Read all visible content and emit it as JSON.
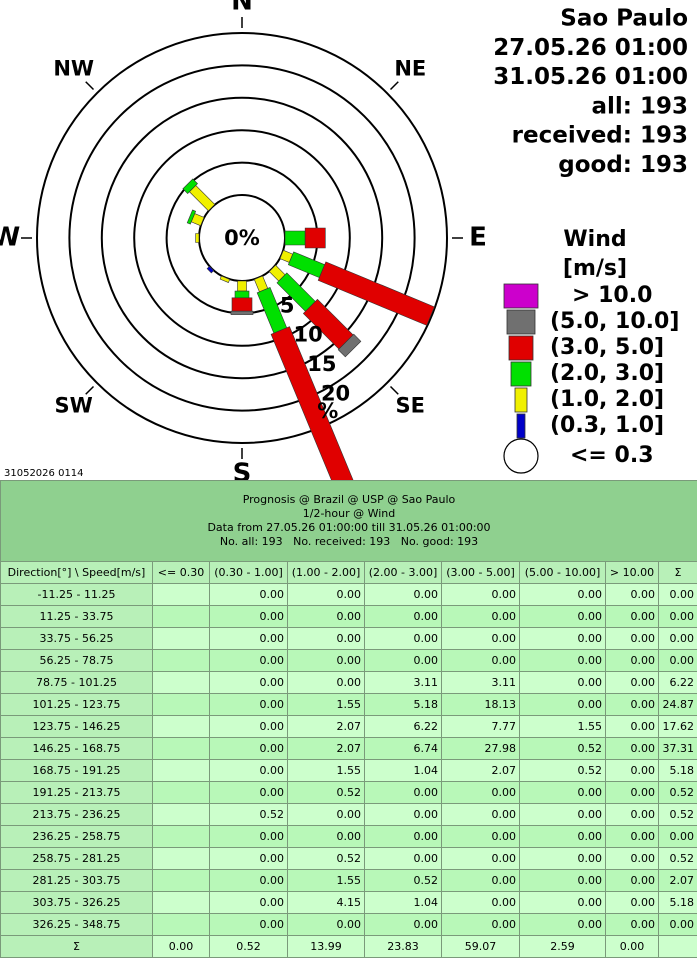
{
  "chart_data": {
    "type": "windrose",
    "info": [
      "Sao Paulo",
      "27.05.26 01:00",
      "31.05.26 01:00",
      "all: 193",
      "received: 193",
      "good: 193"
    ],
    "compass": [
      "N",
      "NE",
      "E",
      "SE",
      "S",
      "SW",
      "W",
      "NW"
    ],
    "center_label": "0%",
    "rlim": [
      0,
      25
    ],
    "rticks": [
      5,
      10,
      15,
      20
    ],
    "runit": "%",
    "legend": {
      "title": "Wind",
      "unit": "[m/s]",
      "items": [
        {
          "name": "> 10.0",
          "color": "#cc00cc"
        },
        {
          "name": "(5.0, 10.0]",
          "color": "#707070"
        },
        {
          "name": "(3.0, 5.0]",
          "color": "#e00000"
        },
        {
          "name": "(2.0, 3.0]",
          "color": "#00e000"
        },
        {
          "name": "(1.0, 2.0]",
          "color": "#f0f000"
        },
        {
          "name": "(0.3, 1.0]",
          "color": "#0000c8"
        },
        {
          "name": "<= 0.3",
          "color": "#ffffff"
        }
      ]
    },
    "stamp": "31052026 0114"
  },
  "table": {
    "caption": [
      "Prognosis @ Brazil @ USP @ Sao Paulo",
      "1/2-hour @ Wind",
      "Data from 27.05.26 01:00:00 till 31.05.26 01:00:00",
      "No. all: 193   No. received: 193   No. good: 193"
    ],
    "header": [
      "Direction[°] \\ Speed[m/s]",
      "<= 0.30",
      "(0.30 - 1.00]",
      "(1.00 - 2.00]",
      "(2.00 - 3.00]",
      "(3.00 - 5.00]",
      "(5.00 - 10.00]",
      "> 10.00",
      "Σ"
    ],
    "rows": [
      [
        "-11.25 - 11.25",
        null,
        "0.00",
        "0.00",
        "0.00",
        "0.00",
        "0.00",
        "0.00",
        "0.00"
      ],
      [
        "11.25 - 33.75",
        null,
        "0.00",
        "0.00",
        "0.00",
        "0.00",
        "0.00",
        "0.00",
        "0.00"
      ],
      [
        "33.75 - 56.25",
        null,
        "0.00",
        "0.00",
        "0.00",
        "0.00",
        "0.00",
        "0.00",
        "0.00"
      ],
      [
        "56.25 - 78.75",
        null,
        "0.00",
        "0.00",
        "0.00",
        "0.00",
        "0.00",
        "0.00",
        "0.00"
      ],
      [
        "78.75 - 101.25",
        null,
        "0.00",
        "0.00",
        "3.11",
        "3.11",
        "0.00",
        "0.00",
        "6.22"
      ],
      [
        "101.25 - 123.75",
        null,
        "0.00",
        "1.55",
        "5.18",
        "18.13",
        "0.00",
        "0.00",
        "24.87"
      ],
      [
        "123.75 - 146.25",
        null,
        "0.00",
        "2.07",
        "6.22",
        "7.77",
        "1.55",
        "0.00",
        "17.62"
      ],
      [
        "146.25 - 168.75",
        null,
        "0.00",
        "2.07",
        "6.74",
        "27.98",
        "0.52",
        "0.00",
        "37.31"
      ],
      [
        "168.75 - 191.25",
        null,
        "0.00",
        "1.55",
        "1.04",
        "2.07",
        "0.52",
        "0.00",
        "5.18"
      ],
      [
        "191.25 - 213.75",
        null,
        "0.00",
        "0.52",
        "0.00",
        "0.00",
        "0.00",
        "0.00",
        "0.52"
      ],
      [
        "213.75 - 236.25",
        null,
        "0.52",
        "0.00",
        "0.00",
        "0.00",
        "0.00",
        "0.00",
        "0.52"
      ],
      [
        "236.25 - 258.75",
        null,
        "0.00",
        "0.00",
        "0.00",
        "0.00",
        "0.00",
        "0.00",
        "0.00"
      ],
      [
        "258.75 - 281.25",
        null,
        "0.00",
        "0.52",
        "0.00",
        "0.00",
        "0.00",
        "0.00",
        "0.52"
      ],
      [
        "281.25 - 303.75",
        null,
        "0.00",
        "1.55",
        "0.52",
        "0.00",
        "0.00",
        "0.00",
        "2.07"
      ],
      [
        "303.75 - 326.25",
        null,
        "0.00",
        "4.15",
        "1.04",
        "0.00",
        "0.00",
        "0.00",
        "5.18"
      ],
      [
        "326.25 - 348.75",
        null,
        "0.00",
        "0.00",
        "0.00",
        "0.00",
        "0.00",
        "0.00",
        "0.00"
      ],
      [
        "Σ",
        "0.00",
        "0.52",
        "13.99",
        "23.83",
        "59.07",
        "2.59",
        "0.00",
        null
      ]
    ]
  }
}
